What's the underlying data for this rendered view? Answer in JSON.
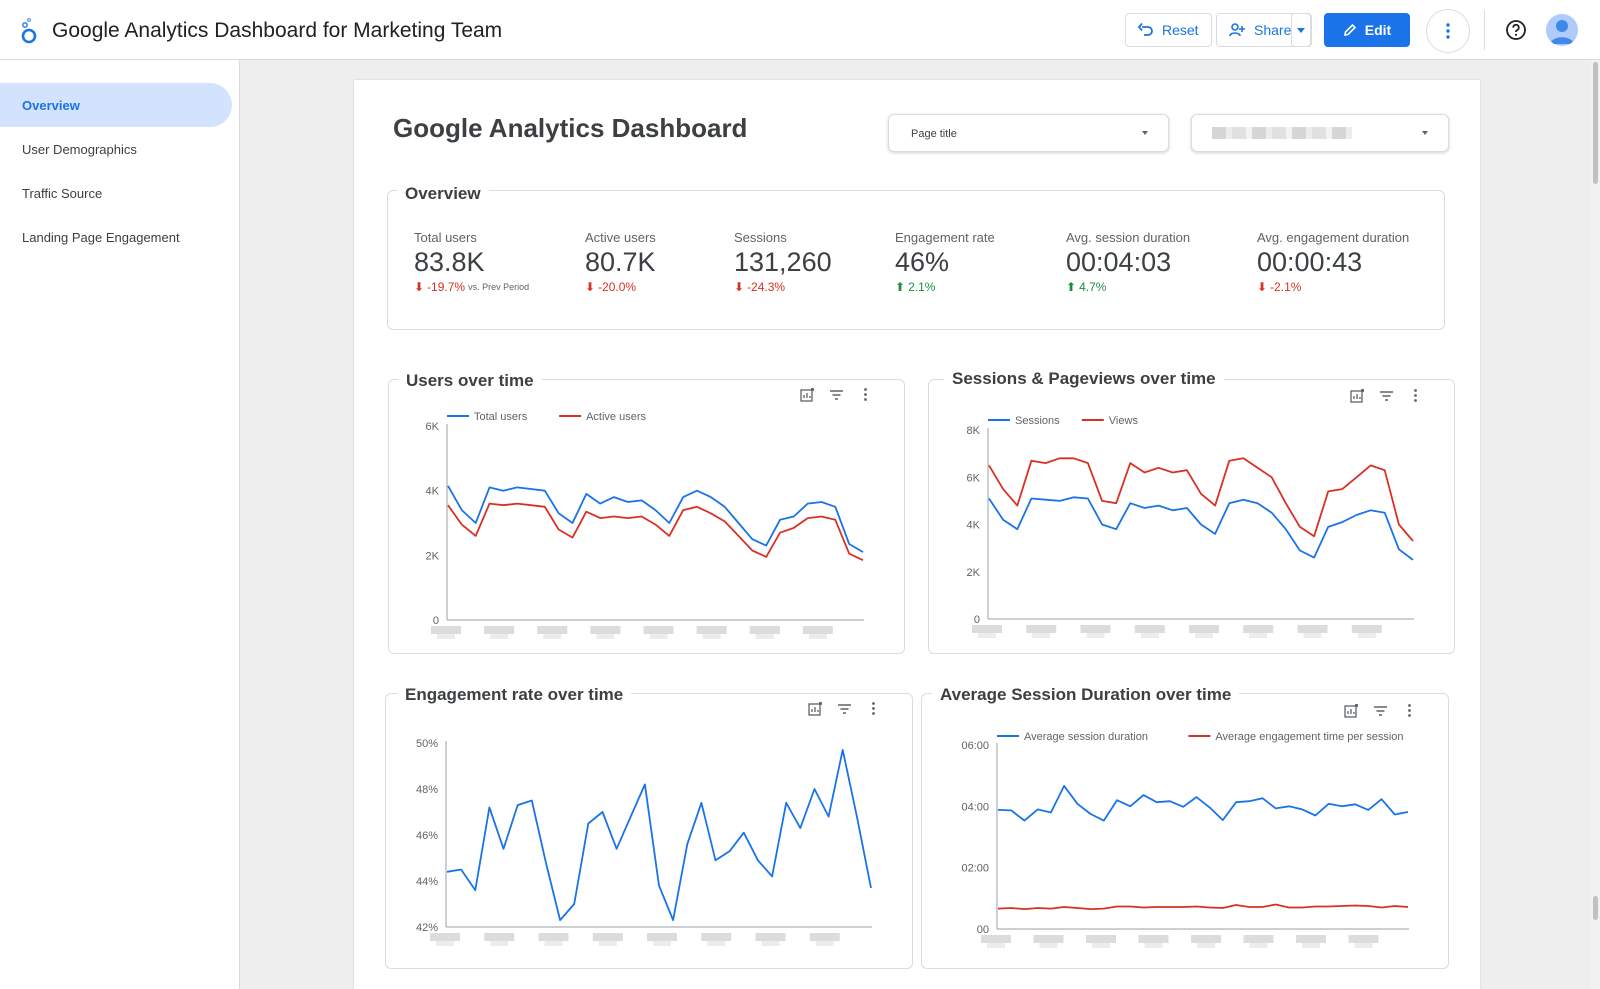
{
  "app": {
    "title": "Google Analytics Dashboard for Marketing Team",
    "reset_label": "Reset",
    "share_label": "Share",
    "edit_label": "Edit"
  },
  "colors": {
    "accent": "#1a73e8",
    "series_blue": "#1a73e8",
    "series_red": "#d93025",
    "positive": "#1e8e3e",
    "negative": "#d93025"
  },
  "sidebar": {
    "items": [
      {
        "label": "Overview",
        "active": true
      },
      {
        "label": "User Demographics",
        "active": false
      },
      {
        "label": "Traffic Source",
        "active": false
      },
      {
        "label": "Landing Page Engagement",
        "active": false
      }
    ]
  },
  "dashboard": {
    "title": "Google Analytics Dashboard",
    "filter_page_title": "Page title"
  },
  "overview": {
    "title": "Overview",
    "kpis": [
      {
        "label": "Total users",
        "value": "83.8K",
        "delta": "-19.7%",
        "direction": "down",
        "suffix": "vs. Prev Period"
      },
      {
        "label": "Active users",
        "value": "80.7K",
        "delta": "-20.0%",
        "direction": "down",
        "suffix": ""
      },
      {
        "label": "Sessions",
        "value": "131,260",
        "delta": "-24.3%",
        "direction": "down",
        "suffix": ""
      },
      {
        "label": "Engagement rate",
        "value": "46%",
        "delta": "2.1%",
        "direction": "up",
        "suffix": ""
      },
      {
        "label": "Avg. session duration",
        "value": "00:04:03",
        "delta": "4.7%",
        "direction": "up",
        "suffix": ""
      },
      {
        "label": "Avg. engagement duration",
        "value": "00:00:43",
        "delta": "-2.1%",
        "direction": "down",
        "suffix": ""
      }
    ]
  },
  "charts": {
    "users": {
      "title": "Users over time"
    },
    "sessions": {
      "title": "Sessions & Pageviews over time"
    },
    "engagement": {
      "title": "Engagement rate over time"
    },
    "duration": {
      "title": "Average Session Duration over time"
    }
  },
  "chart_data": [
    {
      "type": "line",
      "title": "Users over time",
      "ylim": [
        0,
        6000
      ],
      "yticks": [
        "0",
        "2K",
        "4K",
        "6K"
      ],
      "ytick_values": [
        0,
        2000,
        4000,
        6000
      ],
      "grid": false,
      "legend": "top",
      "series": [
        {
          "name": "Total users",
          "color": "#1a73e8",
          "values": [
            4150,
            3400,
            3000,
            4100,
            4000,
            4100,
            4050,
            4000,
            3300,
            3000,
            3900,
            3600,
            3800,
            3650,
            3700,
            3400,
            3000,
            3800,
            4000,
            3800,
            3500,
            3000,
            2500,
            2300,
            3100,
            3200,
            3600,
            3650,
            3500,
            2350,
            2100
          ]
        },
        {
          "name": "Active users",
          "color": "#d93025",
          "values": [
            3550,
            2950,
            2600,
            3600,
            3550,
            3600,
            3550,
            3500,
            2800,
            2550,
            3350,
            3150,
            3200,
            3150,
            3200,
            2950,
            2600,
            3400,
            3500,
            3300,
            3050,
            2600,
            2150,
            1950,
            2700,
            2850,
            3150,
            3200,
            3100,
            2050,
            1850
          ]
        }
      ]
    },
    {
      "type": "line",
      "title": "Sessions & Pageviews over time",
      "ylim": [
        0,
        8000
      ],
      "yticks": [
        "0",
        "2K",
        "4K",
        "6K",
        "8K"
      ],
      "ytick_values": [
        0,
        2000,
        4000,
        6000,
        8000
      ],
      "grid": false,
      "legend": "top",
      "series": [
        {
          "name": "Sessions",
          "color": "#1a73e8",
          "values": [
            5100,
            4200,
            3800,
            5100,
            5050,
            5000,
            5150,
            5100,
            4000,
            3800,
            4900,
            4700,
            4800,
            4600,
            4700,
            4000,
            3600,
            4900,
            5050,
            4900,
            4500,
            3800,
            2900,
            2600,
            3900,
            4100,
            4400,
            4600,
            4500,
            2950,
            2500
          ]
        },
        {
          "name": "Views",
          "color": "#d93025",
          "values": [
            6500,
            5500,
            4800,
            6700,
            6600,
            6800,
            6800,
            6600,
            5000,
            4900,
            6600,
            6200,
            6400,
            6200,
            6300,
            5300,
            4800,
            6700,
            6800,
            6400,
            6000,
            4900,
            3900,
            3500,
            5400,
            5500,
            6000,
            6500,
            6300,
            4000,
            3300
          ]
        }
      ]
    },
    {
      "type": "line",
      "title": "Engagement rate over time",
      "ylim": [
        42,
        50
      ],
      "yticks": [
        "42%",
        "44%",
        "46%",
        "48%",
        "50%"
      ],
      "ytick_values": [
        42,
        44,
        46,
        48,
        50
      ],
      "grid": false,
      "legend": "none",
      "series": [
        {
          "name": "",
          "color": "#1a73e8",
          "values": [
            44.4,
            44.5,
            43.6,
            47.2,
            45.4,
            47.3,
            47.5,
            44.8,
            42.3,
            43.0,
            46.5,
            47.0,
            45.4,
            46.8,
            48.2,
            43.8,
            42.3,
            45.6,
            47.4,
            44.9,
            45.3,
            46.1,
            44.9,
            44.2,
            47.4,
            46.3,
            48.0,
            46.8,
            49.7,
            46.8,
            43.7
          ]
        }
      ]
    },
    {
      "type": "line",
      "title": "Average Session Duration over time",
      "ylim": [
        0,
        360
      ],
      "yticks": [
        "00",
        "02:00",
        "04:00",
        "06:00"
      ],
      "ytick_values": [
        0,
        120,
        240,
        360
      ],
      "grid": false,
      "legend": "top",
      "series": [
        {
          "name": "Average session duration",
          "color": "#1a73e8",
          "values": [
            233,
            232,
            212,
            234,
            228,
            280,
            245,
            225,
            212,
            252,
            240,
            262,
            248,
            250,
            239,
            258,
            238,
            213,
            248,
            250,
            256,
            236,
            240,
            234,
            222,
            245,
            240,
            244,
            233,
            254,
            224,
            229
          ]
        },
        {
          "name": "Average engagement time per session",
          "color": "#d93025",
          "values": [
            40,
            41,
            39,
            41,
            40,
            43,
            41,
            39,
            40,
            44,
            44,
            42,
            43,
            43,
            43,
            44,
            42,
            41,
            47,
            43,
            43,
            48,
            42,
            42,
            44,
            44,
            45,
            46,
            45,
            42,
            45,
            43
          ]
        }
      ]
    }
  ]
}
